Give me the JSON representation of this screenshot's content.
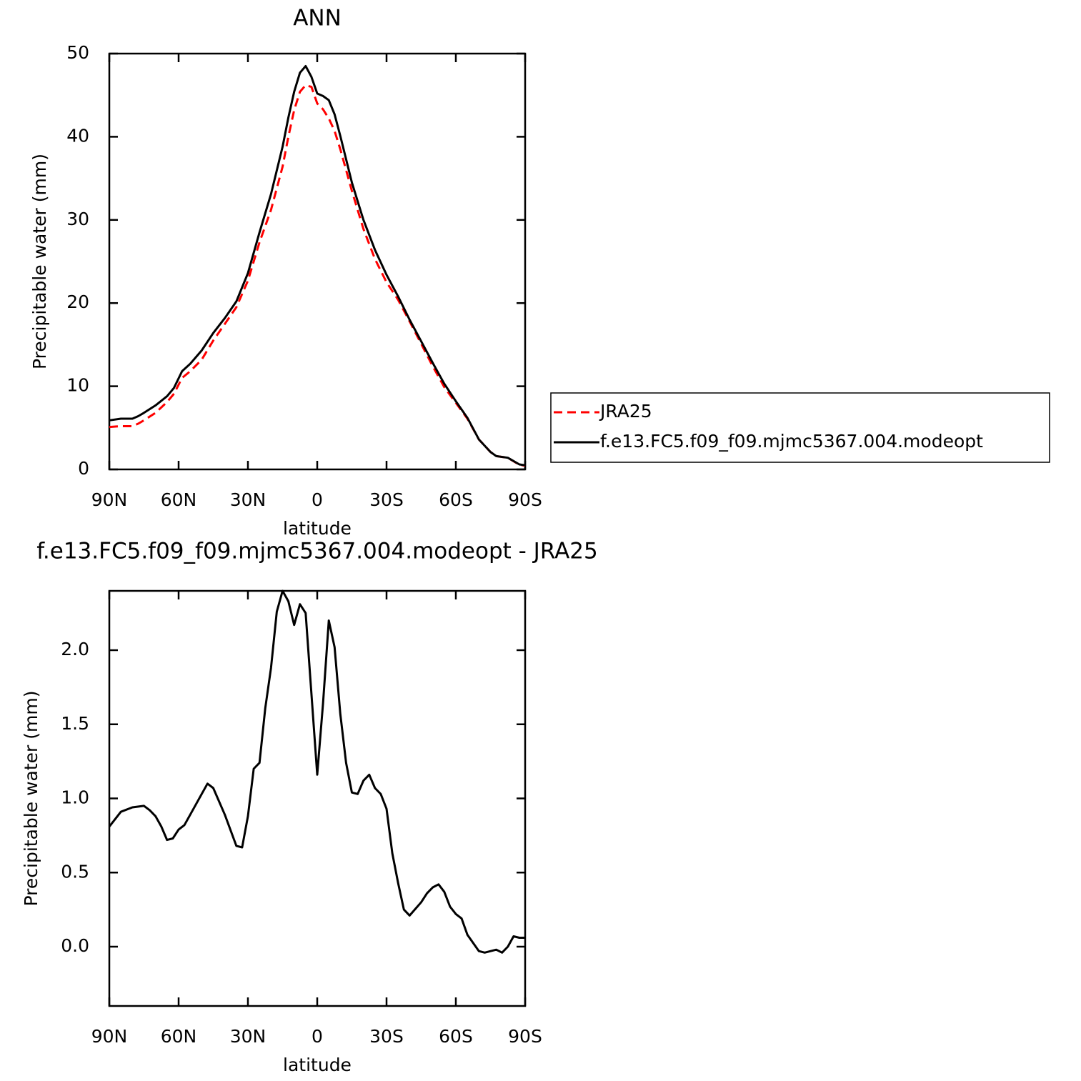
{
  "chart_data": [
    {
      "type": "line",
      "title": "ANN",
      "xlabel": "latitude",
      "ylabel": "Precipitable water (mm)",
      "x": [
        90,
        85,
        80,
        77.5,
        75,
        70,
        65,
        62,
        58.5,
        55,
        50,
        45,
        40,
        35,
        30,
        25,
        20,
        15,
        12.5,
        10,
        7.5,
        5,
        2.5,
        0,
        -2.5,
        -5,
        -7.5,
        -10,
        -15,
        -20,
        -25,
        -30,
        -35,
        -40,
        -45,
        -50,
        -55,
        -60,
        -65,
        -70,
        -75,
        -77.5,
        -82.5,
        -87.5,
        -90
      ],
      "series": [
        {
          "name": "JRA25",
          "color": "#ff0000",
          "dash": true,
          "values": [
            5.1,
            5.2,
            5.2,
            5.5,
            5.9,
            6.8,
            8.1,
            9.1,
            11.0,
            11.8,
            13.2,
            15.5,
            17.5,
            19.5,
            22.7,
            27.3,
            31.2,
            36.4,
            40.0,
            43.2,
            45.4,
            46.2,
            46.0,
            44.0,
            43.3,
            42.2,
            40.7,
            38.5,
            33.5,
            28.9,
            25.3,
            22.5,
            20.4,
            17.8,
            15.1,
            12.4,
            9.9,
            8.0,
            6.1,
            3.6,
            2.1,
            1.6,
            1.4,
            0.55,
            0.45
          ]
        },
        {
          "name": "f.e13.FC5.f09_f09.mjmc5367.004.modeopt",
          "color": "#000000",
          "dash": false,
          "values": [
            5.9,
            6.1,
            6.1,
            6.4,
            6.8,
            7.7,
            8.8,
            9.8,
            11.8,
            12.7,
            14.3,
            16.4,
            18.2,
            20.2,
            23.6,
            28.5,
            33.1,
            38.8,
            42.3,
            45.4,
            47.7,
            48.5,
            47.2,
            45.2,
            44.9,
            44.4,
            42.7,
            40.1,
            34.5,
            30.0,
            26.4,
            23.4,
            20.8,
            18.0,
            15.4,
            12.8,
            10.3,
            8.2,
            6.2,
            3.6,
            2.1,
            1.6,
            1.4,
            0.6,
            0.5
          ]
        }
      ],
      "xlim": [
        90,
        -90
      ],
      "xticks": [
        {
          "value": 90,
          "label": "90N"
        },
        {
          "value": 60,
          "label": "60N"
        },
        {
          "value": 30,
          "label": "30N"
        },
        0,
        {
          "value": -30,
          "label": "30S"
        },
        {
          "value": -60,
          "label": "60S"
        },
        {
          "value": -90,
          "label": "90S"
        }
      ],
      "ylim": [
        0,
        50
      ],
      "yticks": [
        0,
        10,
        20,
        30,
        40,
        50
      ],
      "legend": "right"
    },
    {
      "type": "line",
      "title": "f.e13.FC5.f09_f09.mjmc5367.004.modeopt - JRA25",
      "xlabel": "latitude",
      "ylabel": "Precipitable water (mm)",
      "x": [
        90,
        85,
        80,
        75,
        72.5,
        70,
        67.5,
        65,
        62.5,
        60,
        57.5,
        55,
        50,
        47.5,
        45,
        40,
        35,
        32.5,
        30,
        27.5,
        25,
        22.5,
        20,
        17.5,
        15,
        12.5,
        10,
        7.5,
        5,
        0,
        -2.5,
        -5,
        -7.5,
        -10,
        -12.5,
        -15,
        -17.5,
        -20,
        -22.5,
        -25,
        -27.5,
        -30,
        -32.5,
        -35,
        -37.5,
        -40,
        -45,
        -47.5,
        -50,
        -52.5,
        -55,
        -57.5,
        -60,
        -62.5,
        -65,
        -70,
        -72.5,
        -77.5,
        -80,
        -82.5,
        -85,
        -87.5,
        -90
      ],
      "series": [
        {
          "color": "#000000",
          "dash": false,
          "values": [
            0.81,
            0.91,
            0.94,
            0.95,
            0.92,
            0.88,
            0.81,
            0.72,
            0.73,
            0.79,
            0.82,
            0.89,
            1.03,
            1.1,
            1.07,
            0.89,
            0.68,
            0.67,
            0.88,
            1.2,
            1.24,
            1.61,
            1.88,
            2.26,
            2.4,
            2.33,
            2.17,
            2.31,
            2.25,
            1.16,
            1.64,
            2.2,
            2.02,
            1.57,
            1.24,
            1.04,
            1.03,
            1.12,
            1.16,
            1.07,
            1.03,
            0.93,
            0.63,
            0.43,
            0.25,
            0.21,
            0.3,
            0.36,
            0.4,
            0.42,
            0.37,
            0.27,
            0.22,
            0.19,
            0.08,
            -0.03,
            -0.04,
            -0.02,
            -0.04,
            0,
            0.07,
            0.06,
            0.06
          ]
        }
      ],
      "xlim": [
        90,
        -90
      ],
      "xticks": [
        {
          "value": 90,
          "label": "90N"
        },
        {
          "value": 60,
          "label": "60N"
        },
        {
          "value": 30,
          "label": "30N"
        },
        0,
        {
          "value": -30,
          "label": "30S"
        },
        {
          "value": -60,
          "label": "60S"
        },
        {
          "value": -90,
          "label": "90S"
        }
      ],
      "ylim": [
        -0.4,
        2.4
      ],
      "yticks": [
        {
          "value": 0,
          "label": "0.0"
        },
        0.5,
        {
          "value": 1,
          "label": "1.0"
        },
        1.5,
        {
          "value": 2,
          "label": "2.0"
        }
      ]
    }
  ]
}
